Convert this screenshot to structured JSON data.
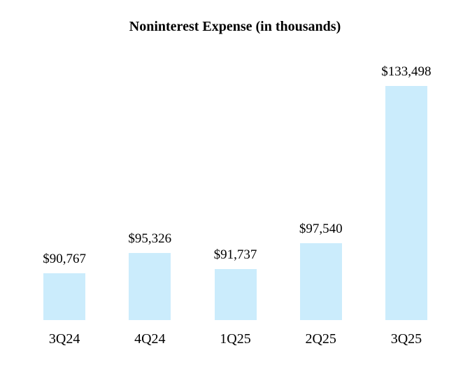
{
  "chart_data": {
    "type": "bar",
    "title": "Noninterest Expense (in thousands)",
    "categories": [
      "3Q24",
      "4Q24",
      "1Q25",
      "2Q25",
      "3Q25"
    ],
    "values": [
      90767,
      95326,
      91737,
      97540,
      133498
    ],
    "value_labels": [
      "$90,767",
      "$95,326",
      "$91,737",
      "$97,540",
      "$133,498"
    ],
    "xlabel": "",
    "ylabel": "",
    "ylim": [
      80000,
      142000
    ],
    "grid": false,
    "legend": false,
    "bar_color": "#CBECFC",
    "text_color": "#000000",
    "background_color": "#FFFFFF"
  }
}
